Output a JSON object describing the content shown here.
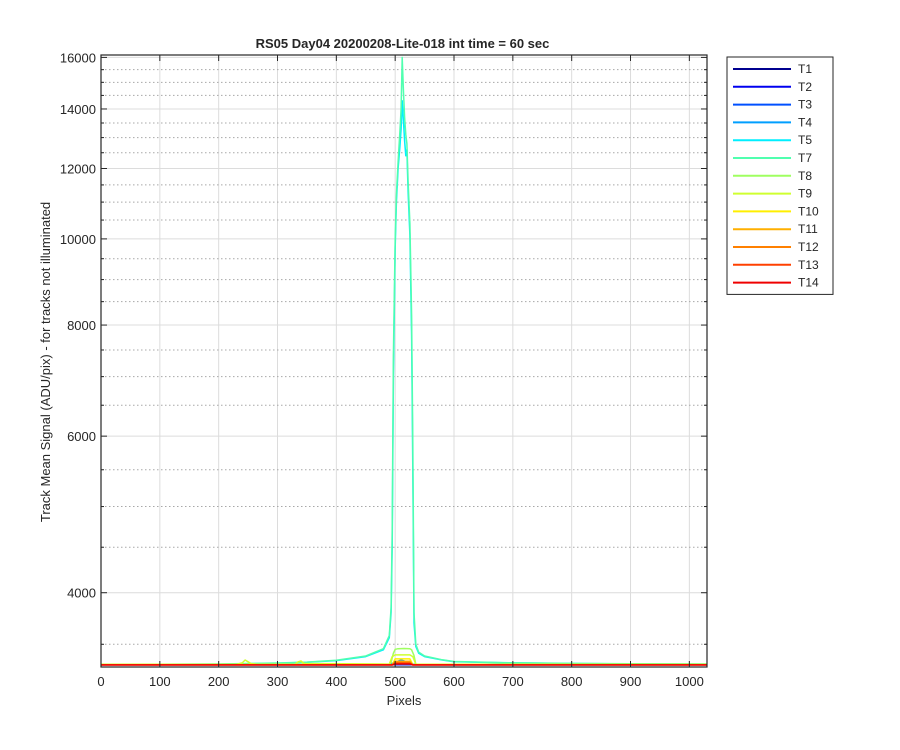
{
  "chart_data": {
    "type": "line",
    "title": "RS05 Day04 20200208-Lite-018 int time = 60 sec",
    "xlabel": "Pixels",
    "ylabel": "Track Mean Signal (ADU/pix) - for tracks not illuminated",
    "xlim": [
      0,
      1030
    ],
    "ylim": [
      3300,
      16100
    ],
    "yscale": "log",
    "grid": true,
    "legend_position": "outside-top-right",
    "x_ticks": [
      0,
      100,
      200,
      300,
      400,
      500,
      600,
      700,
      800,
      900,
      1000
    ],
    "x_tick_labels": [
      "0",
      "100",
      "200",
      "300",
      "400",
      "500",
      "600",
      "700",
      "800",
      "900",
      "1000"
    ],
    "y_ticks": [
      4000,
      6000,
      8000,
      10000,
      12000,
      14000,
      16000
    ],
    "y_tick_labels": [
      "4000",
      "6000",
      "8000",
      "10000",
      "12000",
      "14000",
      "16000"
    ],
    "y_minor_ticks": [
      3500,
      4500,
      5000,
      5500,
      6500,
      7000,
      7500,
      8500,
      9000,
      9500,
      10500,
      11000,
      11500,
      12500,
      13000,
      13500,
      14500,
      15000,
      15500
    ],
    "series": [
      {
        "name": "T1",
        "color": "#00008f",
        "x": [
          0,
          1030
        ],
        "y": [
          3320,
          3320
        ]
      },
      {
        "name": "T2",
        "color": "#0000ef",
        "x": [
          0,
          1030
        ],
        "y": [
          3321,
          3321
        ]
      },
      {
        "name": "T3",
        "color": "#0050ff",
        "x": [
          0,
          1030
        ],
        "y": [
          3322,
          3322
        ]
      },
      {
        "name": "T4",
        "color": "#009fff",
        "x": [
          0,
          490,
          500,
          510,
          520,
          530,
          540,
          1030
        ],
        "y": [
          3322,
          3323,
          3340,
          3360,
          3345,
          3325,
          3322,
          3322
        ]
      },
      {
        "name": "T5",
        "color": "#00efff",
        "x": [
          0,
          100,
          200,
          300,
          350,
          400,
          450,
          480,
          490,
          493,
          495,
          497,
          500,
          502,
          505,
          508,
          510,
          512,
          514,
          516,
          518,
          520,
          522,
          525,
          528,
          530,
          532,
          535,
          540,
          550,
          580,
          600,
          700,
          800,
          900,
          1030
        ],
        "y": [
          3322,
          3323,
          3325,
          3332,
          3340,
          3355,
          3390,
          3450,
          3560,
          3800,
          4500,
          7000,
          9800,
          11000,
          12000,
          12700,
          13300,
          14300,
          13600,
          12900,
          12400,
          12600,
          11300,
          10100,
          7800,
          5500,
          3700,
          3480,
          3420,
          3390,
          3360,
          3345,
          3335,
          3330,
          3327,
          3325
        ]
      },
      {
        "name": "T7",
        "color": "#50ffaf",
        "x": [
          0,
          100,
          200,
          300,
          350,
          400,
          450,
          480,
          490,
          493,
          495,
          497,
          500,
          502,
          505,
          508,
          510,
          512,
          514,
          516,
          518,
          520,
          522,
          525,
          528,
          530,
          532,
          535,
          540,
          550,
          580,
          600,
          700,
          800,
          900,
          1030
        ],
        "y": [
          3322,
          3323,
          3326,
          3334,
          3342,
          3358,
          3395,
          3460,
          3580,
          3850,
          4700,
          7400,
          10000,
          11200,
          12200,
          13200,
          14000,
          16000,
          14700,
          13700,
          13100,
          12800,
          11600,
          10400,
          8200,
          5900,
          3800,
          3500,
          3430,
          3395,
          3362,
          3347,
          3336,
          3331,
          3328,
          3326
        ]
      },
      {
        "name": "T8",
        "color": "#9fff60",
        "x": [
          0,
          490,
          493,
          497,
          500,
          505,
          515,
          525,
          528,
          532,
          535,
          1030
        ],
        "y": [
          3322,
          3323,
          3340,
          3420,
          3455,
          3460,
          3462,
          3460,
          3450,
          3400,
          3325,
          3322
        ]
      },
      {
        "name": "T9",
        "color": "#cfff30",
        "x": [
          0,
          230,
          240,
          245,
          250,
          255,
          265,
          330,
          335,
          340,
          345,
          490,
          495,
          500,
          525,
          530,
          535,
          1030
        ],
        "y": [
          3322,
          3322,
          3335,
          3360,
          3345,
          3330,
          3323,
          3324,
          3345,
          3352,
          3330,
          3325,
          3390,
          3405,
          3405,
          3390,
          3325,
          3322
        ]
      },
      {
        "name": "T10",
        "color": "#ffef00",
        "x": [
          0,
          495,
          500,
          525,
          530,
          1030
        ],
        "y": [
          3321,
          3321,
          3370,
          3370,
          3321,
          3321
        ]
      },
      {
        "name": "T11",
        "color": "#ffaf00",
        "x": [
          0,
          495,
          500,
          525,
          530,
          1030
        ],
        "y": [
          3320,
          3320,
          3350,
          3350,
          3320,
          3320
        ]
      },
      {
        "name": "T12",
        "color": "#ff8000",
        "x": [
          0,
          495,
          500,
          525,
          530,
          1030
        ],
        "y": [
          3319,
          3319,
          3340,
          3340,
          3319,
          3319
        ]
      },
      {
        "name": "T13",
        "color": "#ff4000",
        "x": [
          0,
          495,
          500,
          525,
          530,
          1030
        ],
        "y": [
          3318,
          3318,
          3332,
          3332,
          3318,
          3318
        ]
      },
      {
        "name": "T14",
        "color": "#ef0000",
        "x": [
          0,
          495,
          500,
          525,
          530,
          1030
        ],
        "y": [
          3317,
          3317,
          3326,
          3326,
          3317,
          3317
        ]
      }
    ]
  }
}
